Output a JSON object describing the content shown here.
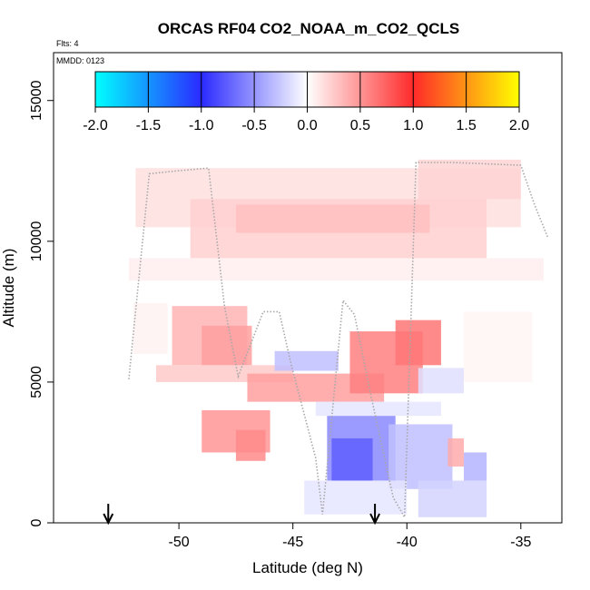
{
  "chart_data": {
    "type": "heatmap",
    "title": "ORCAS RF04 CO2_NOAA_m_CO2_QCLS",
    "subtitle_flights": "Flts: 4",
    "subtitle_date": "MMDD: 0123",
    "xlabel": "Latitude (deg N)",
    "ylabel": "Altitude (m)",
    "xlim": [
      -55.5,
      -33.2
    ],
    "ylim": [
      0,
      16700
    ],
    "x_ticks": [
      -50,
      -45,
      -40,
      -35
    ],
    "x_tick_labels": [
      "-50",
      "-45",
      "-40",
      "-35"
    ],
    "y_ticks": [
      0,
      5000,
      10000,
      15000
    ],
    "y_tick_labels": [
      "0",
      "5000",
      "10000",
      "15000"
    ],
    "colorbar": {
      "range": [
        -2.0,
        2.0
      ],
      "ticks": [
        -2.0,
        -1.5,
        -1.0,
        -0.5,
        0.0,
        0.5,
        1.0,
        1.5,
        2.0
      ],
      "tick_labels": [
        "-2.0",
        "-1.5",
        "-1.0",
        "-0.5",
        "0.0",
        "0.5",
        "1.0",
        "1.5",
        "2.0"
      ],
      "colors": [
        "#00ffff",
        "#2a2aff",
        "#ffffff",
        "#ff2a2a",
        "#ffff00"
      ]
    },
    "arrows_lat": [
      -53.1,
      -41.4
    ],
    "cells": [
      {
        "lat0": -51.9,
        "lat1": -35.0,
        "alt0": 10500,
        "alt1": 12600,
        "value": 0.15
      },
      {
        "lat0": -49.5,
        "lat1": -36.5,
        "alt0": 9400,
        "alt1": 11500,
        "value": 0.22
      },
      {
        "lat0": -47.5,
        "lat1": -39.0,
        "alt0": 10300,
        "alt1": 11300,
        "value": 0.3
      },
      {
        "lat0": -39.5,
        "lat1": -35.0,
        "alt0": 11500,
        "alt1": 12900,
        "value": 0.2
      },
      {
        "lat0": -52.2,
        "lat1": -34.0,
        "alt0": 8600,
        "alt1": 9400,
        "value": 0.08
      },
      {
        "lat0": -50.3,
        "lat1": -47.0,
        "alt0": 5600,
        "alt1": 7700,
        "value": 0.35
      },
      {
        "lat0": -49.0,
        "lat1": -46.8,
        "alt0": 5600,
        "alt1": 7000,
        "value": 0.45
      },
      {
        "lat0": -51.0,
        "lat1": -45.0,
        "alt0": 5000,
        "alt1": 5600,
        "value": 0.25
      },
      {
        "lat0": -47.0,
        "lat1": -41.0,
        "alt0": 4300,
        "alt1": 5300,
        "value": 0.45
      },
      {
        "lat0": -42.5,
        "lat1": -39.3,
        "alt0": 4600,
        "alt1": 6800,
        "value": 0.6
      },
      {
        "lat0": -40.5,
        "lat1": -38.5,
        "alt0": 5600,
        "alt1": 7200,
        "value": 0.65
      },
      {
        "lat0": -49.0,
        "lat1": -46.0,
        "alt0": 2500,
        "alt1": 4000,
        "value": 0.5
      },
      {
        "lat0": -47.5,
        "lat1": -46.2,
        "alt0": 2200,
        "alt1": 3300,
        "value": 0.55
      },
      {
        "lat0": -45.8,
        "lat1": -43.0,
        "alt0": 5400,
        "alt1": 6100,
        "value": -0.3
      },
      {
        "lat0": -43.5,
        "lat1": -40.5,
        "alt0": 1500,
        "alt1": 3800,
        "value": -0.55
      },
      {
        "lat0": -43.3,
        "lat1": -41.5,
        "alt0": 1500,
        "alt1": 3000,
        "value": -0.75
      },
      {
        "lat0": -40.8,
        "lat1": -38.0,
        "alt0": 1200,
        "alt1": 3500,
        "value": -0.3
      },
      {
        "lat0": -39.5,
        "lat1": -36.5,
        "alt0": 200,
        "alt1": 1500,
        "value": -0.2
      },
      {
        "lat0": -38.2,
        "lat1": -37.5,
        "alt0": 2000,
        "alt1": 3000,
        "value": 0.4
      },
      {
        "lat0": -37.5,
        "lat1": -36.5,
        "alt0": 1500,
        "alt1": 2500,
        "value": -0.35
      },
      {
        "lat0": -44.0,
        "lat1": -38.5,
        "alt0": 3800,
        "alt1": 4300,
        "value": -0.12
      },
      {
        "lat0": -39.5,
        "lat1": -37.5,
        "alt0": 4600,
        "alt1": 5500,
        "value": -0.15
      },
      {
        "lat0": -37.5,
        "lat1": -34.5,
        "alt0": 5000,
        "alt1": 7500,
        "value": 0.05
      },
      {
        "lat0": -52.0,
        "lat1": -50.5,
        "alt0": 6000,
        "alt1": 7800,
        "value": 0.06
      },
      {
        "lat0": -44.5,
        "lat1": -40.0,
        "alt0": 300,
        "alt1": 1500,
        "value": -0.12
      }
    ],
    "flight_track": [
      [
        -52.2,
        5100
      ],
      [
        -51.3,
        12400
      ],
      [
        -50.1,
        12500
      ],
      [
        -48.7,
        12600
      ],
      [
        -48.0,
        7700
      ],
      [
        -47.4,
        5200
      ],
      [
        -46.3,
        7500
      ],
      [
        -45.6,
        7500
      ],
      [
        -45.1,
        5700
      ],
      [
        -44.0,
        2300
      ],
      [
        -43.7,
        300
      ],
      [
        -42.8,
        7900
      ],
      [
        -42.3,
        7400
      ],
      [
        -41.6,
        4600
      ],
      [
        -40.6,
        900
      ],
      [
        -40.1,
        200
      ],
      [
        -39.6,
        12800
      ],
      [
        -38.0,
        12800
      ],
      [
        -35.0,
        12700
      ],
      [
        -34.4,
        11300
      ],
      [
        -33.8,
        10100
      ]
    ]
  }
}
